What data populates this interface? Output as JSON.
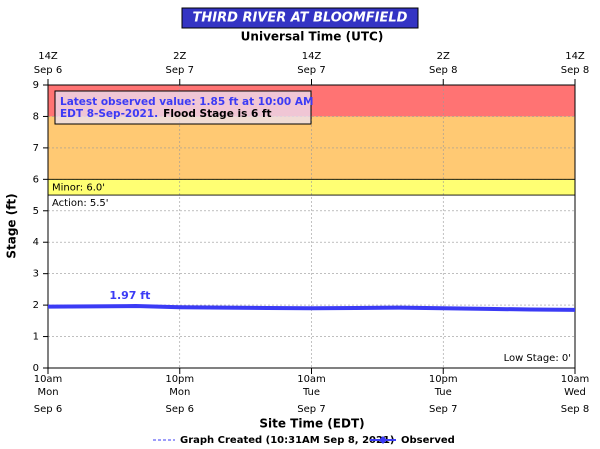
{
  "chart_data": {
    "type": "line",
    "title": "THIRD RIVER AT BLOOMFIELD",
    "top_axis_title": "Universal Time (UTC)",
    "ylabel": "Stage (ft)",
    "xlabel": "Site Time (EDT)",
    "xlim": [
      "2021-09-06T10:00",
      "2021-09-08T10:00"
    ],
    "ylim": [
      0,
      9
    ],
    "yticks": [
      0,
      1,
      2,
      3,
      4,
      5,
      6,
      7,
      8,
      9
    ],
    "grid": true,
    "xticks": [
      {
        "value": "2021-09-06T10:00",
        "label": "10am",
        "day": "Mon",
        "date": "Sep 6"
      },
      {
        "value": "2021-09-06T22:00",
        "label": "10pm",
        "day": "Mon",
        "date": "Sep 6"
      },
      {
        "value": "2021-09-07T10:00",
        "label": "10am",
        "day": "Tue",
        "date": "Sep 7"
      },
      {
        "value": "2021-09-07T22:00",
        "label": "10pm",
        "day": "Tue",
        "date": "Sep 7"
      },
      {
        "value": "2021-09-08T10:00",
        "label": "10am",
        "day": "Wed",
        "date": "Sep 8"
      }
    ],
    "top_ticks": [
      {
        "value": "2021-09-06T10:00",
        "label": "14Z",
        "date": "Sep 6"
      },
      {
        "value": "2021-09-06T22:00",
        "label": "2Z",
        "date": "Sep 7"
      },
      {
        "value": "2021-09-07T10:00",
        "label": "14Z",
        "date": "Sep 7"
      },
      {
        "value": "2021-09-07T22:00",
        "label": "2Z",
        "date": "Sep 8"
      },
      {
        "value": "2021-09-08T10:00",
        "label": "14Z",
        "date": "Sep 8"
      }
    ],
    "bands": [
      {
        "from": 8,
        "to": 9,
        "color": "#ff7373"
      },
      {
        "from": 6,
        "to": 8,
        "color": "#ffc973"
      },
      {
        "from": 5.5,
        "to": 6,
        "color": "#ffff73"
      }
    ],
    "thresholds": [
      {
        "value": 6,
        "label": "Minor: 6.0'"
      },
      {
        "value": 5.5,
        "label": "Action: 5.5'"
      },
      {
        "value": 0,
        "label": "Low Stage: 0'"
      }
    ],
    "annotation": {
      "line1": "Latest observed value: 1.85 ft at 10:00 AM",
      "line2": "EDT 8-Sep-2021.",
      "line2b": "Flood Stage is 6 ft"
    },
    "series": [
      {
        "name": "Observed",
        "color": "#3b3bf5",
        "x": [
          "2021-09-06T10:00",
          "2021-09-06T14:00",
          "2021-09-06T18:00",
          "2021-09-06T22:00",
          "2021-09-07T02:00",
          "2021-09-07T06:00",
          "2021-09-07T10:00",
          "2021-09-07T14:00",
          "2021-09-07T18:00",
          "2021-09-07T22:00",
          "2021-09-08T02:00",
          "2021-09-08T06:00",
          "2021-09-08T10:00"
        ],
        "values": [
          1.95,
          1.96,
          1.97,
          1.93,
          1.92,
          1.91,
          1.9,
          1.91,
          1.92,
          1.9,
          1.88,
          1.86,
          1.85
        ],
        "value_labels": [
          null,
          null,
          "1.97 ft",
          null,
          null,
          null,
          null,
          null,
          null,
          null,
          null,
          null,
          null
        ]
      }
    ],
    "legend": {
      "created": "Graph Created (10:31AM Sep 8, 2021)"
    }
  }
}
